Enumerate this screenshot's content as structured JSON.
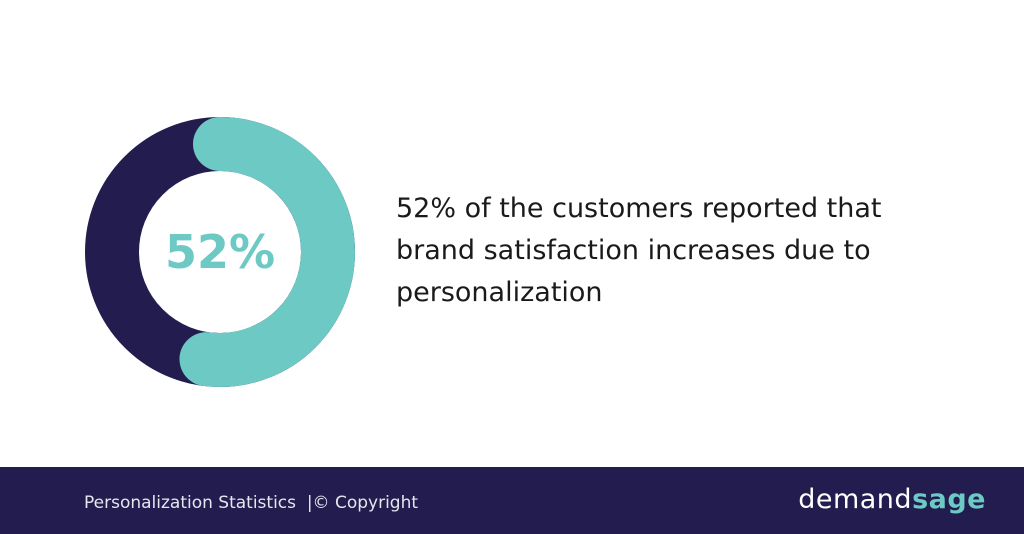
{
  "chart_data": {
    "type": "donut",
    "values": [
      52
    ],
    "value_labels": [
      "52%"
    ],
    "color": "#6cc9c4",
    "track_color": "#221c4f",
    "caption": "52% of the customers reported that brand satisfaction increases due to personalization"
  },
  "footer": {
    "left": "Personalization Statistics",
    "copyright": "|© Copyright",
    "brand": [
      "demand",
      "sage"
    ]
  }
}
